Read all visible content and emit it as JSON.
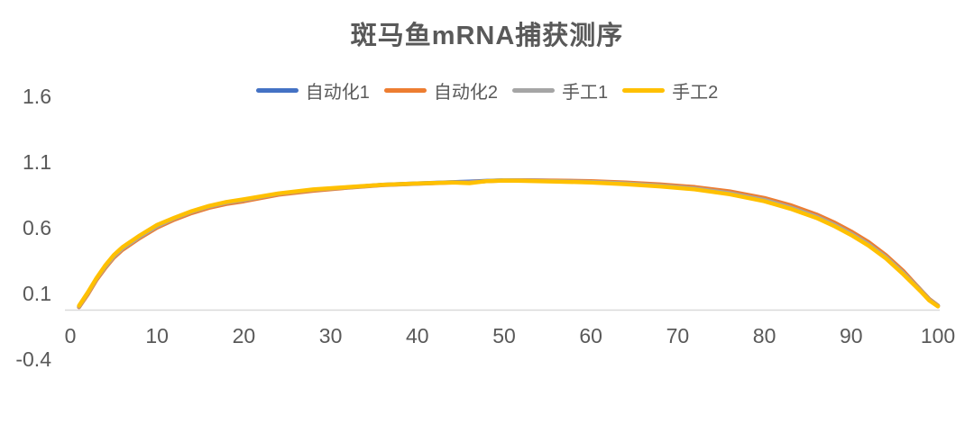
{
  "chart_data": {
    "type": "line",
    "title": "斑马鱼mRNA捕获测序",
    "xlabel": "",
    "ylabel": "",
    "grid": false,
    "legend_position": "top",
    "axis_line_color": "#D9D9D9",
    "text_color": "#595959",
    "background_color": "#FFFFFF",
    "ylim": [
      -0.4,
      1.6
    ],
    "xlim": [
      0,
      100
    ],
    "y_ticks": [
      1.6,
      1.1,
      0.6,
      0.1,
      -0.4
    ],
    "x_ticks": [
      0,
      10,
      20,
      30,
      40,
      50,
      60,
      70,
      80,
      90,
      100
    ],
    "x": [
      1,
      2,
      3,
      4,
      5,
      6,
      8,
      10,
      12,
      14,
      16,
      18,
      20,
      24,
      28,
      32,
      36,
      40,
      44,
      46,
      48,
      50,
      52,
      56,
      60,
      64,
      68,
      72,
      76,
      80,
      83,
      86,
      88,
      90,
      92,
      94,
      96,
      98,
      99,
      100
    ],
    "series": [
      {
        "name": "自动化1",
        "id": "automation-1",
        "color": "#4472C4",
        "values": [
          0.02,
          0.12,
          0.23,
          0.32,
          0.4,
          0.46,
          0.55,
          0.63,
          0.69,
          0.74,
          0.78,
          0.81,
          0.83,
          0.88,
          0.91,
          0.93,
          0.95,
          0.96,
          0.97,
          0.975,
          0.98,
          0.985,
          0.985,
          0.98,
          0.975,
          0.965,
          0.95,
          0.93,
          0.895,
          0.845,
          0.79,
          0.72,
          0.66,
          0.59,
          0.51,
          0.41,
          0.29,
          0.15,
          0.08,
          0.03
        ]
      },
      {
        "name": "自动化2",
        "id": "automation-2",
        "color": "#ED7D31",
        "values": [
          0.02,
          0.115,
          0.225,
          0.315,
          0.395,
          0.455,
          0.545,
          0.625,
          0.685,
          0.735,
          0.775,
          0.805,
          0.825,
          0.875,
          0.905,
          0.928,
          0.948,
          0.958,
          0.968,
          0.97,
          0.978,
          0.983,
          0.985,
          0.982,
          0.978,
          0.968,
          0.953,
          0.933,
          0.9,
          0.85,
          0.795,
          0.725,
          0.665,
          0.595,
          0.515,
          0.415,
          0.295,
          0.15,
          0.08,
          0.03
        ]
      },
      {
        "name": "手工1",
        "id": "manual-1",
        "color": "#A5A5A5",
        "values": [
          0.025,
          0.125,
          0.235,
          0.325,
          0.405,
          0.465,
          0.555,
          0.635,
          0.695,
          0.745,
          0.785,
          0.815,
          0.835,
          0.882,
          0.912,
          0.931,
          0.949,
          0.959,
          0.969,
          0.968,
          0.979,
          0.984,
          0.983,
          0.978,
          0.972,
          0.96,
          0.944,
          0.922,
          0.886,
          0.835,
          0.778,
          0.708,
          0.648,
          0.578,
          0.498,
          0.4,
          0.28,
          0.145,
          0.075,
          0.028
        ]
      },
      {
        "name": "手工2",
        "id": "manual-2",
        "color": "#FFC000",
        "values": [
          0.03,
          0.13,
          0.24,
          0.335,
          0.415,
          0.475,
          0.565,
          0.645,
          0.7,
          0.75,
          0.79,
          0.82,
          0.84,
          0.885,
          0.915,
          0.933,
          0.95,
          0.96,
          0.968,
          0.962,
          0.978,
          0.982,
          0.98,
          0.975,
          0.968,
          0.955,
          0.938,
          0.915,
          0.878,
          0.825,
          0.768,
          0.698,
          0.638,
          0.568,
          0.488,
          0.39,
          0.27,
          0.14,
          0.07,
          0.025
        ]
      }
    ]
  }
}
